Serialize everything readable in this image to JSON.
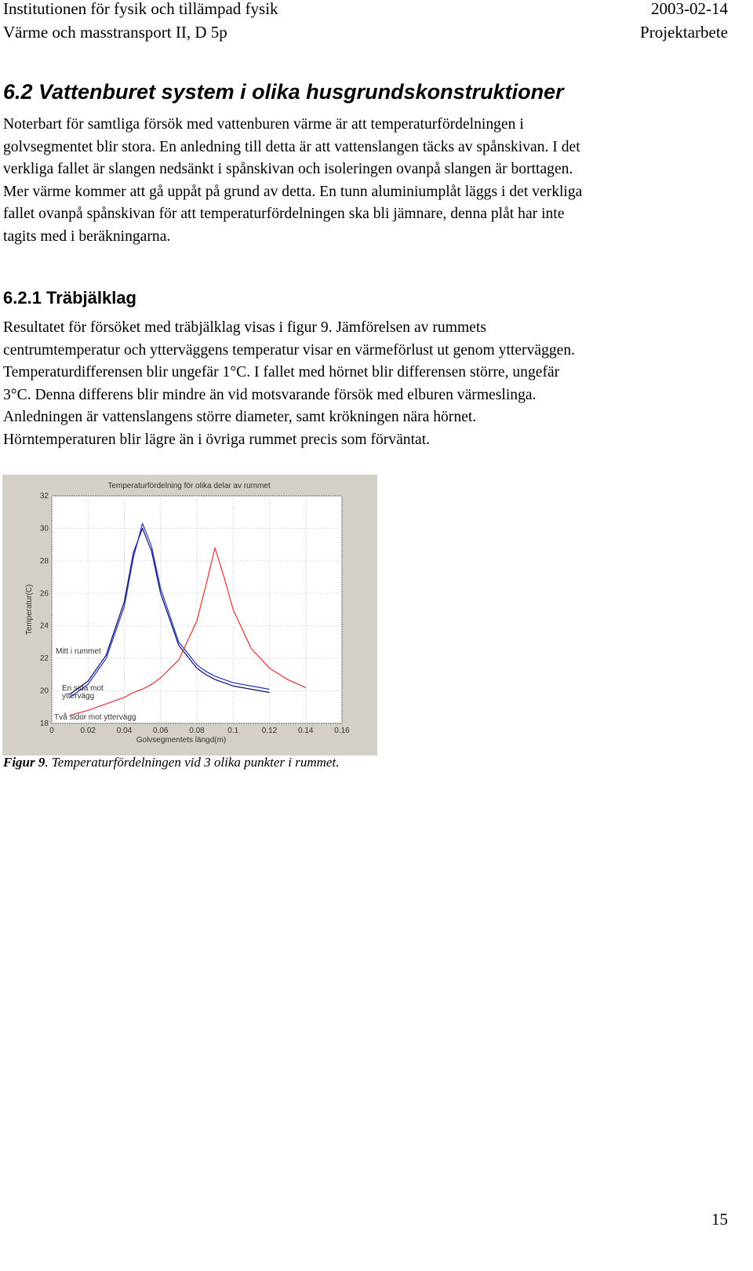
{
  "header": {
    "left": [
      "Institutionen för fysik och tillämpad fysik",
      "Värme och masstransport II, D 5p"
    ],
    "right": [
      "2003-02-14",
      "Projektarbete"
    ]
  },
  "section": {
    "heading": "6.2 Vattenburet system i olika husgrundskonstruktioner",
    "paragraph": [
      "Noterbart för samtliga försök med vattenburen värme är att temperaturfördelningen i",
      "golvsegmentet blir stora. En anledning till detta är att vattenslangen täcks av spånskivan. I det",
      "verkliga fallet är slangen nedsänkt i spånskivan och isoleringen ovanpå slangen är borttagen.",
      "Mer värme kommer att gå uppåt på grund av detta. En tunn aluminiumplåt läggs i det verkliga",
      "fallet ovanpå spånskivan för att temperaturfördelningen ska bli jämnare, denna plåt har inte",
      "tagits med i beräkningarna."
    ]
  },
  "subsection": {
    "heading": "6.2.1 Träbjälklag",
    "paragraph": [
      "Resultatet för försöket med träbjälklag visas i figur 9. Jämförelsen av rummets",
      "centrumtemperatur och ytterväggens temperatur visar en värmeförlust ut genom ytterväggen.",
      "Temperaturdifferensen blir ungefär 1°C. I fallet med hörnet blir differensen större, ungefär",
      "3°C. Denna differens blir mindre än vid motsvarande försök med elburen värmeslinga.",
      "Anledningen är vattenslangens större diameter, samt krökningen nära hörnet.",
      "Hörntemperaturen blir lägre än i övriga rummet precis som förväntat."
    ]
  },
  "figure": {
    "chart_data": {
      "type": "line",
      "title": "Temperaturfördelning för olika delar av rummet",
      "x_label": "Golvsegmentets längd(m)",
      "y_label": "Temperatur(C)",
      "x": [
        0.01,
        0.02,
        0.03,
        0.04,
        0.045,
        0.05,
        0.055,
        0.06,
        0.07,
        0.08,
        0.085,
        0.09,
        0.095,
        0.1,
        0.11,
        0.12,
        0.13,
        0.14
      ],
      "series": [
        {
          "color": "#101060",
          "values": [
            19.8,
            20.6,
            22.2,
            25.5,
            28.5,
            30.0,
            28.6,
            26.0,
            22.8,
            21.4,
            21.0,
            20.7,
            20.5,
            20.3,
            20.1,
            19.9,
            null,
            null
          ]
        },
        {
          "color": "#2030d0",
          "values": [
            19.6,
            20.4,
            22.0,
            25.2,
            28.2,
            30.3,
            28.9,
            26.3,
            23.0,
            21.6,
            21.2,
            20.9,
            20.7,
            20.5,
            20.3,
            20.1,
            null,
            null
          ]
        },
        {
          "color": "#e03030",
          "values": [
            18.5,
            18.8,
            19.2,
            19.6,
            19.9,
            20.1,
            20.4,
            20.8,
            21.9,
            24.3,
            26.5,
            28.8,
            27.0,
            25.0,
            22.6,
            21.4,
            20.7,
            20.2
          ]
        }
      ],
      "annotations": [
        [
          "Mitt i rummet"
        ],
        [
          "En sida mot",
          "yttervägg"
        ],
        [
          "Två sidor mot yttervägg"
        ]
      ],
      "xlim": [
        0,
        0.16
      ],
      "xticks": [
        0,
        0.02,
        0.04,
        0.06,
        0.08,
        0.1,
        0.12,
        0.14,
        0.16
      ],
      "ylim": [
        18,
        32
      ],
      "yticks": [
        18,
        20,
        22,
        24,
        26,
        28,
        30,
        32
      ],
      "grid": true
    },
    "caption": {
      "label": "Figur 9",
      "text": ". Temperaturfördelningen vid 3 olika punkter i rummet."
    }
  },
  "page_number": "15"
}
